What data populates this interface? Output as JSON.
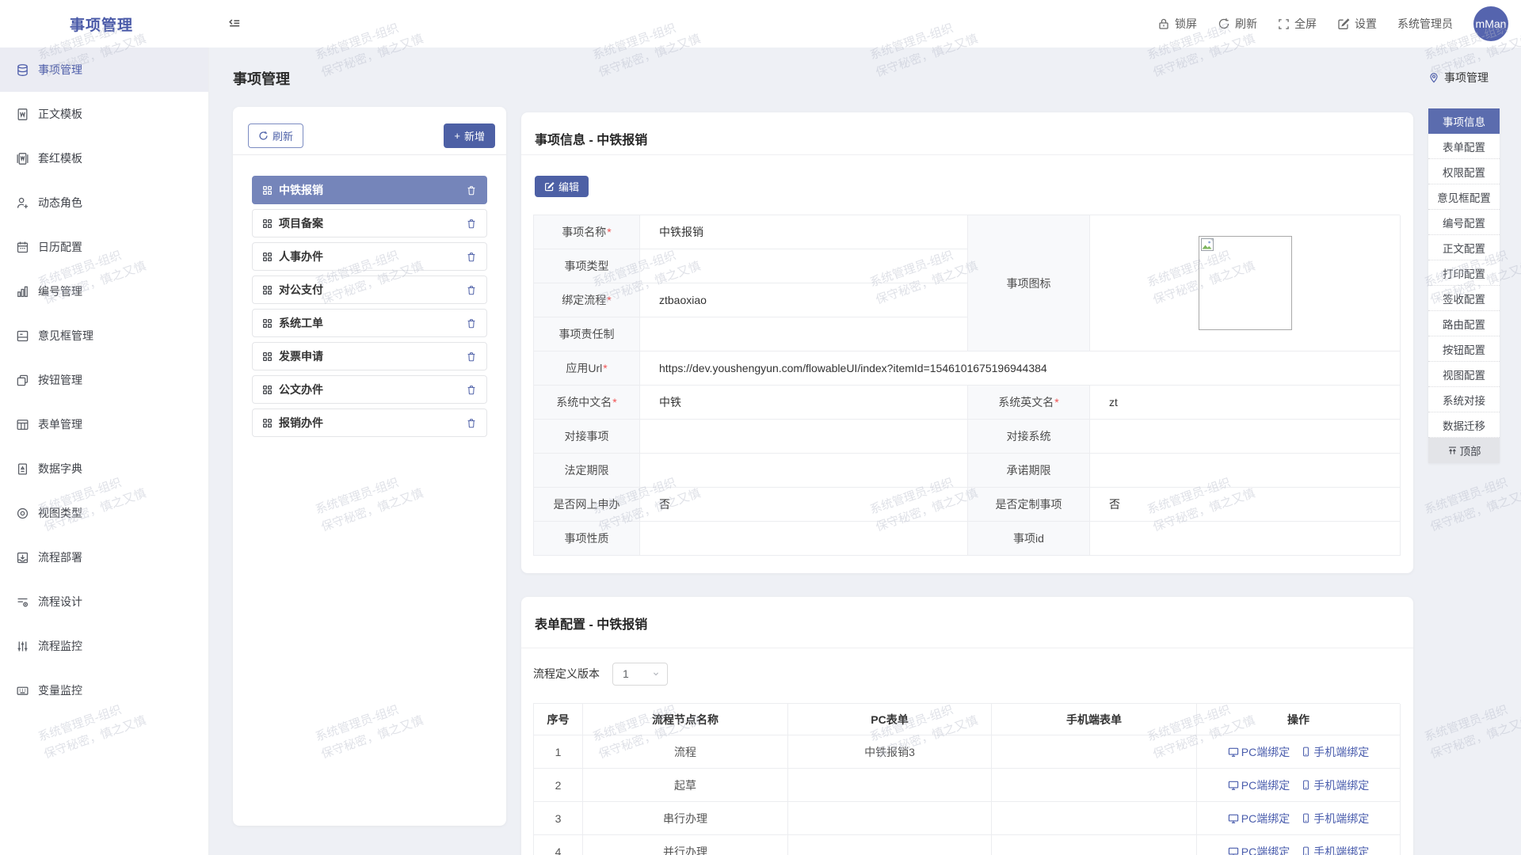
{
  "app": {
    "logo": "事项管理",
    "header": {
      "lock": "锁屏",
      "refresh": "刷新",
      "fullscreen": "全屏",
      "settings": "设置",
      "username": "系统管理员",
      "avatar_text": "mMan"
    }
  },
  "colors": {
    "accent": "#4d60a5",
    "accent_light": "#7585ba",
    "anchor_active": "#5b6cae"
  },
  "sidebar": {
    "items": [
      {
        "label": "事项管理",
        "active": true
      },
      {
        "label": "正文模板"
      },
      {
        "label": "套红模板"
      },
      {
        "label": "动态角色"
      },
      {
        "label": "日历配置"
      },
      {
        "label": "编号管理"
      },
      {
        "label": "意见框管理"
      },
      {
        "label": "按钮管理"
      },
      {
        "label": "表单管理"
      },
      {
        "label": "数据字典"
      },
      {
        "label": "视图类型"
      },
      {
        "label": "流程部署"
      },
      {
        "label": "流程设计"
      },
      {
        "label": "流程监控"
      },
      {
        "label": "变量监控"
      }
    ]
  },
  "page": {
    "title": "事项管理"
  },
  "list_panel": {
    "refresh_label": "刷新",
    "add_label": "新增",
    "items": [
      {
        "label": "中铁报销",
        "selected": true
      },
      {
        "label": "项目备案"
      },
      {
        "label": "人事办件"
      },
      {
        "label": "对公支付"
      },
      {
        "label": "系统工单"
      },
      {
        "label": "发票申请"
      },
      {
        "label": "公文办件"
      },
      {
        "label": "报销办件"
      }
    ]
  },
  "info": {
    "title": "事项信息 - 中铁报销",
    "edit_label": "编辑",
    "icon_label": "事项图标",
    "fields": [
      {
        "label": "事项名称",
        "value": "中铁报销"
      },
      {
        "label": "事项类型",
        "value": ""
      },
      {
        "label": "绑定流程",
        "value": "ztbaoxiao"
      },
      {
        "label": "事项责任制",
        "value": ""
      },
      {
        "label": "应用Url",
        "value": "https://dev.youshengyun.com/flowableUI/index?itemId=1546101675196944384"
      },
      {
        "label": "系统中文名",
        "value": "中铁"
      },
      {
        "label": "系统英文名",
        "value": "zt"
      },
      {
        "label": "对接事项",
        "value": ""
      },
      {
        "label": "对接系统",
        "value": ""
      },
      {
        "label": "法定期限",
        "value": ""
      },
      {
        "label": "承诺期限",
        "value": ""
      },
      {
        "label": "是否网上申办",
        "value": "否"
      },
      {
        "label": "是否定制事项",
        "value": "否"
      },
      {
        "label": "事项性质",
        "value": ""
      },
      {
        "label": "事项id",
        "value": ""
      }
    ]
  },
  "form_config": {
    "title": "表单配置 - 中铁报销",
    "version_label": "流程定义版本",
    "version_value": "1",
    "headers": [
      "序号",
      "流程节点名称",
      "PC表单",
      "手机端表单",
      "操作"
    ],
    "rows": [
      {
        "no": "1",
        "name": "流程",
        "pc": "中铁报销3",
        "mobile": "",
        "pc_bind": "PC端绑定",
        "mobile_bind": "手机端绑定"
      },
      {
        "no": "2",
        "name": "起草",
        "pc": "",
        "mobile": "",
        "pc_bind": "PC端绑定",
        "mobile_bind": "手机端绑定"
      },
      {
        "no": "3",
        "name": "串行办理",
        "pc": "",
        "mobile": "",
        "pc_bind": "PC端绑定",
        "mobile_bind": "手机端绑定"
      },
      {
        "no": "4",
        "name": "并行办理",
        "pc": "",
        "mobile": "",
        "pc_bind": "PC端绑定",
        "mobile_bind": "手机端绑定"
      }
    ]
  },
  "anchor": {
    "title": "事项管理",
    "items": [
      {
        "label": "事项信息",
        "active": true
      },
      {
        "label": "表单配置"
      },
      {
        "label": "权限配置"
      },
      {
        "label": "意见框配置"
      },
      {
        "label": "编号配置"
      },
      {
        "label": "正文配置"
      },
      {
        "label": "打印配置"
      },
      {
        "label": "签收配置"
      },
      {
        "label": "路由配置"
      },
      {
        "label": "按钮配置"
      },
      {
        "label": "视图配置"
      },
      {
        "label": "系统对接"
      },
      {
        "label": "数据迁移"
      }
    ],
    "back_top": "顶部"
  },
  "watermark": {
    "line1": "系统管理员-组织",
    "line2": "保守秘密，慎之又慎"
  }
}
